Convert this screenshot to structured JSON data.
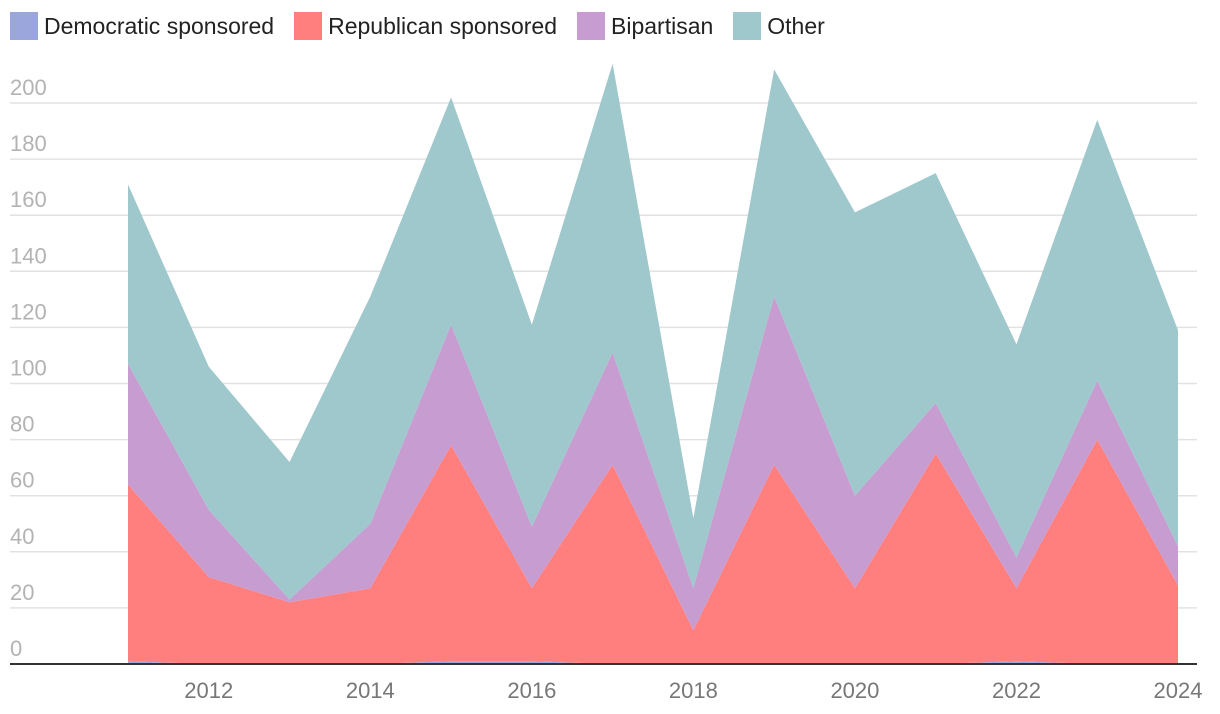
{
  "chart_data": {
    "type": "area",
    "stacked": true,
    "x": [
      2011,
      2012,
      2013,
      2014,
      2015,
      2016,
      2017,
      2018,
      2019,
      2020,
      2021,
      2022,
      2023,
      2024
    ],
    "x_ticks": [
      "2012",
      "2014",
      "2016",
      "2018",
      "2020",
      "2022",
      "2024"
    ],
    "y_ticks": [
      "0",
      "20",
      "40",
      "60",
      "80",
      "100",
      "120",
      "140",
      "160",
      "180",
      "200"
    ],
    "ylim": [
      0,
      215
    ],
    "grid": true,
    "legend": "top-left",
    "series": [
      {
        "name": "Democratic sponsored",
        "color": "#9aa6dc",
        "values": [
          1,
          0,
          0,
          0,
          1,
          1,
          0,
          0,
          0,
          0,
          0,
          1,
          0,
          0
        ]
      },
      {
        "name": "Republican sponsored",
        "color": "#ff7f7e",
        "values": [
          63,
          31,
          22,
          27,
          77,
          26,
          71,
          12,
          71,
          27,
          75,
          26,
          80,
          28
        ]
      },
      {
        "name": "Bipartisan",
        "color": "#c79cd1",
        "values": [
          43,
          24,
          1,
          23,
          43,
          22,
          40,
          15,
          60,
          33,
          18,
          11,
          21,
          14
        ]
      },
      {
        "name": "Other",
        "color": "#9fc8cc",
        "values": [
          64,
          51,
          49,
          81,
          81,
          72,
          103,
          25,
          81,
          101,
          82,
          76,
          93,
          77
        ]
      }
    ]
  }
}
